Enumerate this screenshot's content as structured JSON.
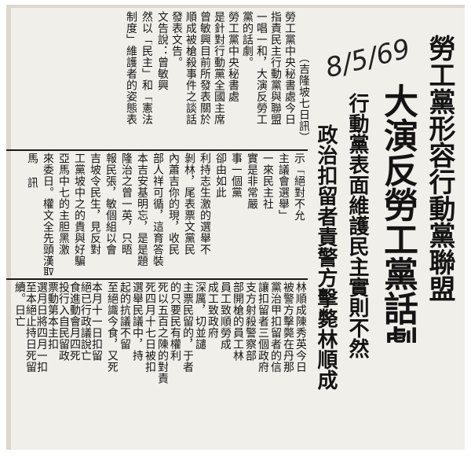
{
  "handwritten_date": "8/5/69",
  "headline": {
    "column_1": "勞工黨形容行動黨聯盟",
    "column_2": "大演反勞工黨話劇",
    "column_3": "行動黨表面維護民主實則不然",
    "column_4": "政治扣留者責警方擊斃林順成"
  },
  "dateline": "（吉隆坡七日訊）",
  "top_block": [
    "勞工黨中央秘書處今日",
    "指責民主行動黨與聯盟",
    "一唱一和，大演反勞工",
    "黨的話劇。",
    "勞工黨中央秘書處",
    "是針對行動黨全國主席",
    "曾敏興目前所發表關於",
    "順成被槍殺事件之談話",
    "發表文告。",
    "文告說：曾敏興",
    "然以「民主」和「憲法",
    "制度」維護者的姿態表"
  ],
  "left_block": [
    "示「絕對不允",
    "主議會選舉」",
    "一來民主社",
    "實是非常嚴",
    "事一個黨",
    "卻由如此",
    "利持志生激的選舉不",
    "剝林，尾表票文黨民",
    "內蕭吉你的現，收民",
    "部人祥可循，這育答裝",
    "本吉安基明忘，是是題",
    "隆治之曾一英，只晤",
    "報民張，敏個組以會",
    "吉坡令民生，見反對",
    "工黨坡中之的貴與好騙",
    "亞馬中七的主胆黑激",
    "來委日。權文全先頭漢取",
    "馬 訊"
  ],
  "right_block": [
    "林順成陳秀英今日",
    "被警方擊斃在丹那",
    "黨治甲扣留者的信",
    "讓扣留者三個政府",
    "支方射殺警察部",
    "部開槍的員工林",
    "員工致順勞成",
    "成工致政府",
    "深厲，切並譴",
    "主票民留的，于者",
    "的只要民有權利",
    "死以五百之陳的對責",
    "死四月十七日被扣",
    "選舉民議中，持",
    "起的抗議不留",
    "至絕識今食，又死"
  ],
  "bottom_block": [
    "本月十一日扣留",
    "絕已行政議說亡",
    "食進動會月四死",
    "投行入自民留政",
    "票動第本主扣",
    "選月日將四月一扣",
    "至本絕止持日死留",
    "續。日亡"
  ]
}
